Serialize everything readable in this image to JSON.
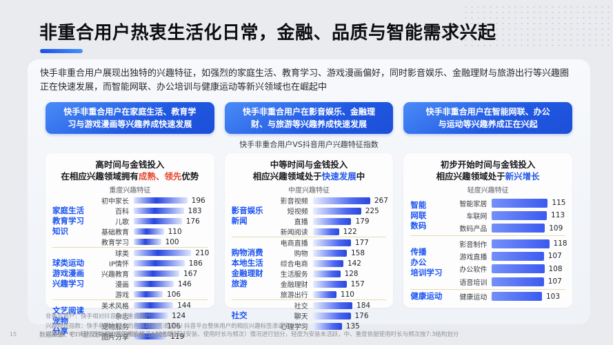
{
  "colors": {
    "accent_blue": "#1d4fd8",
    "highlight_red": "#e84a2d",
    "highlight_blue": "#2458e6",
    "group_label_blue": "#1a53f0",
    "divider_gold": "#e8dba8",
    "bar_blue": "#2f54eb"
  },
  "page_number": "15",
  "title": "非重合用户热衷生活化日常，金融、品质与智能需求兴起",
  "intro": "快手非重合用户展现出独特的兴趣特征，如强烈的家庭生活、教育学习、游戏漫画偏好，同时影音娱乐、金融理财与旅游出行等兴趣圈正在快速发展，而智能网联、办公培训与健康运动等新兴领域也在崛起中",
  "banners": [
    {
      "lines": [
        "快手非重合用户在家庭生活、教育学",
        "习与游戏漫画等兴趣养成快速发展"
      ]
    },
    {
      "lines": [
        "快手非重合用户在影音娱乐、金融理",
        "财、与旅游等兴趣养成快速发展"
      ]
    },
    {
      "lines": [
        "快手非重合用户在智能网联、办公",
        "与运动等兴趣养成正在兴起"
      ]
    }
  ],
  "chart_caption": "快手非重合用户VS抖音用户兴趣特征指数",
  "chart_data": [
    {
      "type": "bar",
      "title": "高时间与金钱投入",
      "subtitle_segments": [
        {
          "text": "在相应兴趣领域拥有",
          "color": "default"
        },
        {
          "text": "成熟、领先",
          "color": "red"
        },
        {
          "text": "优势",
          "color": "default"
        }
      ],
      "axis_label": "重度兴趣特征",
      "groups": [
        {
          "label_lines": [
            "家庭生活",
            "教育学习",
            "知识"
          ],
          "items": [
            {
              "name": "初中家长",
              "value": 196
            },
            {
              "name": "百科",
              "value": 183
            },
            {
              "name": "儿歌",
              "value": 176
            },
            {
              "name": "基础教育",
              "value": 110
            },
            {
              "name": "教育学习",
              "value": 100
            }
          ]
        },
        {
          "label_lines": [
            "球类运动",
            "游戏漫画",
            "兴趣学习"
          ],
          "items": [
            {
              "name": "球类",
              "value": 210
            },
            {
              "name": "IP情怀",
              "value": 186
            },
            {
              "name": "兴趣教育",
              "value": 167
            },
            {
              "name": "漫画",
              "value": 146
            },
            {
              "name": "游戏",
              "value": 106
            }
          ]
        },
        {
          "label_lines": [
            "文艺阅读",
            "宠物",
            "分享"
          ],
          "items": [
            {
              "name": "美术风格",
              "value": 144
            },
            {
              "name": "杂志",
              "value": 124
            },
            {
              "name": "宠物服务",
              "value": 106
            },
            {
              "name": "图片分享",
              "value": 119
            }
          ]
        }
      ]
    },
    {
      "type": "bar",
      "title": "中等时间与金钱投入",
      "subtitle_segments": [
        {
          "text": "相应兴趣领域处于",
          "color": "default"
        },
        {
          "text": "快速发展",
          "color": "blue"
        },
        {
          "text": "中",
          "color": "default"
        }
      ],
      "axis_label": "中度兴趣特征",
      "groups": [
        {
          "label_lines": [
            "影音娱乐",
            "新闻"
          ],
          "items": [
            {
              "name": "影音视频",
              "value": 267
            },
            {
              "name": "短视频",
              "value": 225
            },
            {
              "name": "直播",
              "value": 179
            },
            {
              "name": "新闻阅读",
              "value": 122
            }
          ]
        },
        {
          "label_lines": [
            "购物消费",
            "本地生活",
            "金融理财",
            "旅游"
          ],
          "items": [
            {
              "name": "电商直播",
              "value": 177
            },
            {
              "name": "购物",
              "value": 158
            },
            {
              "name": "综合电商",
              "value": 142
            },
            {
              "name": "生活服务",
              "value": 128
            },
            {
              "name": "金融理财",
              "value": 157
            },
            {
              "name": "旅游出行",
              "value": 110
            }
          ]
        },
        {
          "label_lines": [
            "社交"
          ],
          "items": [
            {
              "name": "社交",
              "value": 184
            },
            {
              "name": "聊天",
              "value": 176
            },
            {
              "name": "心理学习",
              "value": 135
            }
          ]
        }
      ]
    },
    {
      "type": "bar",
      "title": "初步开始时间与金钱投入",
      "subtitle_segments": [
        {
          "text": "相应兴趣领域处于",
          "color": "default"
        },
        {
          "text": "新兴增长",
          "color": "blue"
        }
      ],
      "axis_label": "轻度兴趣特征",
      "groups": [
        {
          "label_lines": [
            "智能",
            "网联",
            "数码"
          ],
          "items": [
            {
              "name": "智能家居",
              "value": 115
            },
            {
              "name": "车联网",
              "value": 113
            },
            {
              "name": "数码产品",
              "value": 109
            }
          ]
        },
        {
          "label_lines": [
            "传播",
            "办公",
            "培训学习"
          ],
          "items": [
            {
              "name": "影音制作",
              "value": 118
            },
            {
              "name": "游戏直播",
              "value": 107
            },
            {
              "name": "办公软件",
              "value": 108
            },
            {
              "name": "语音培训",
              "value": 107
            }
          ]
        },
        {
          "label_lines": [
            "健康运动"
          ],
          "items": [
            {
              "name": "健康运动",
              "value": 103
            }
          ]
        }
      ]
    }
  ],
  "footnotes": [
    "非重合用户：快手相对抖音的非重合用户",
    "兴趣特征指数：快手非重合用户的各兴趣标签渗透率/ 抖音平台整体用户的相应兴趣标签渗透率* 100",
    "兴趣重、中、轻标签由用户使用相应标签APP的活跃（安装、使用时长与频次）情况进行划分，轻度为安装未活跃，中、重度依据使用时长与频次按7:3结构划分"
  ],
  "source": "数据来源：CTR星汉移动用户分析系统（2025年1月）"
}
